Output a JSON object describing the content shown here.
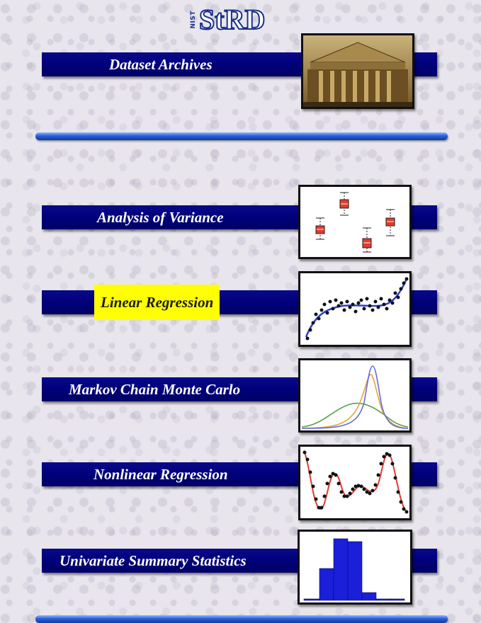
{
  "logo": {
    "prefix": "NIST",
    "text": "StRD"
  },
  "archives": {
    "label": "Dataset Archives",
    "image": "building-photo"
  },
  "menu": [
    {
      "label": "Analysis of Variance",
      "icon": "boxplot-icon"
    },
    {
      "label": "Linear Regression",
      "icon": "regression-scatter-icon",
      "highlighted": true
    },
    {
      "label": "Markov Chain Monte Carlo",
      "icon": "density-curves-icon"
    },
    {
      "label": "Nonlinear Regression",
      "icon": "nonlinear-fit-icon"
    },
    {
      "label": "Univariate Summary Statistics",
      "icon": "histogram-icon"
    }
  ],
  "colors": {
    "banner": "#00007a",
    "highlight": "#ffff00",
    "rule": "#2b5fd9",
    "logo": "#1a2f8c"
  }
}
